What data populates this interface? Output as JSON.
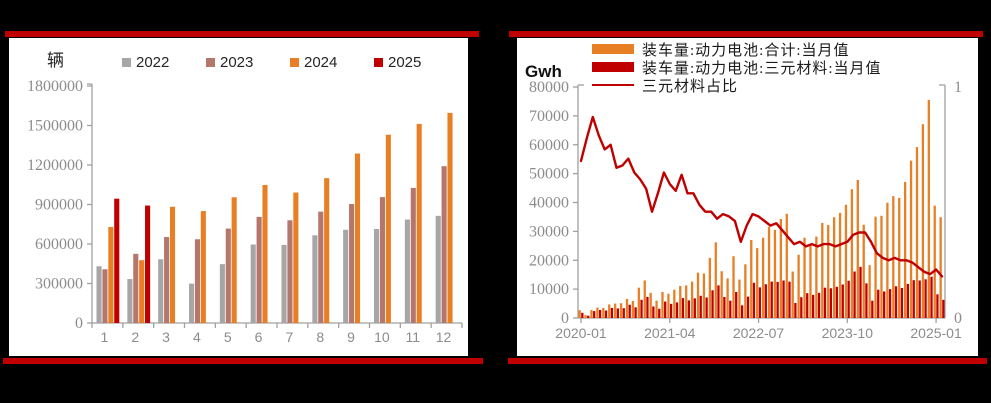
{
  "page": {
    "background_color": "#000000",
    "panel_color": "#FFFFFF",
    "accent_color": "#C00000",
    "axis_color": "#A0A0A0",
    "tick_label_color": "#8C8C8C"
  },
  "chart_data": [
    {
      "type": "bar",
      "unit": "辆",
      "categories": [
        "1",
        "2",
        "3",
        "4",
        "5",
        "6",
        "7",
        "8",
        "9",
        "10",
        "11",
        "12"
      ],
      "ylim": [
        0,
        1800000
      ],
      "yticks": [
        0,
        300000,
        600000,
        900000,
        1200000,
        1500000,
        1800000
      ],
      "legend_position": "top",
      "grid": false,
      "series": [
        {
          "name": "2022",
          "color": "#A6A6A6",
          "values": [
            431000,
            334000,
            484000,
            299000,
            447000,
            596000,
            593000,
            666000,
            708000,
            714000,
            786000,
            814000
          ]
        },
        {
          "name": "2023",
          "color": "#B5766B",
          "values": [
            408000,
            525000,
            653000,
            636000,
            717000,
            806000,
            780000,
            846000,
            904000,
            956000,
            1026000,
            1191000
          ]
        },
        {
          "name": "2024",
          "color": "#E87F24",
          "values": [
            729000,
            477000,
            883000,
            850000,
            955000,
            1048000,
            991000,
            1100000,
            1287000,
            1430000,
            1512000,
            1596000
          ]
        },
        {
          "name": "2025",
          "color": "#C00000",
          "values": [
            944000,
            892000
          ]
        }
      ]
    },
    {
      "type": "bar+line",
      "unit": "Gwh",
      "ylim_left": [
        0,
        80000
      ],
      "yticks_left": [
        0,
        10000,
        20000,
        30000,
        40000,
        50000,
        60000,
        70000,
        80000
      ],
      "ylim_right": [
        0,
        1
      ],
      "yticks_right": [
        0,
        1
      ],
      "x_ticks": [
        {
          "m": 0,
          "label": "2020-01"
        },
        {
          "m": 15,
          "label": "2021-04"
        },
        {
          "m": 30,
          "label": "2022-07"
        },
        {
          "m": 45,
          "label": "2023-10"
        },
        {
          "m": 60,
          "label": "2025-01"
        }
      ],
      "legend_position": "top",
      "grid": false,
      "series": [
        {
          "name": "装车量:动力电池:合计:当月值",
          "color": "#E87F24",
          "values": [
            2700,
            1000,
            2800,
            3600,
            3500,
            4700,
            5000,
            5100,
            6600,
            5900,
            10500,
            13000,
            8700,
            6000,
            9000,
            8400,
            9800,
            11100,
            11300,
            12600,
            15700,
            15400,
            20800,
            26200,
            16200,
            13700,
            21400,
            13300,
            18600,
            27000,
            24200,
            27800,
            31600,
            30500,
            34300,
            36100,
            16100,
            21900,
            27800,
            25100,
            28200,
            32900,
            32200,
            34900,
            36400,
            39200,
            44600,
            47800,
            32300,
            18300,
            35100,
            35400,
            39900,
            42200,
            41600,
            47100,
            54500,
            59200,
            67100,
            75500,
            38900,
            34900
          ]
        },
        {
          "name": "装车量:动力电池:三元材料:当月值",
          "color": "#C00000",
          "values": [
            1800,
            800,
            2400,
            2800,
            2600,
            3500,
            3300,
            3400,
            4600,
            3700,
            6300,
            7300,
            4000,
            3200,
            5700,
            4900,
            5400,
            6900,
            6100,
            6800,
            7700,
            7100,
            9600,
            11300,
            7300,
            6000,
            9000,
            4400,
            7400,
            12200,
            10600,
            11700,
            12600,
            12500,
            13000,
            12600,
            5200,
            7200,
            8600,
            8000,
            8700,
            10500,
            10300,
            10800,
            11600,
            12900,
            16100,
            17700,
            12000,
            6000,
            9800,
            9200,
            10000,
            11000,
            10400,
            11800,
            13100,
            13000,
            13400,
            14300,
            8200,
            6300
          ]
        }
      ],
      "line": {
        "name": "三元材料占比",
        "color": "#C00000",
        "axis": "right",
        "values": [
          0.68,
          0.78,
          0.87,
          0.79,
          0.73,
          0.75,
          0.65,
          0.66,
          0.69,
          0.63,
          0.6,
          0.56,
          0.46,
          0.54,
          0.63,
          0.58,
          0.55,
          0.62,
          0.54,
          0.54,
          0.49,
          0.46,
          0.46,
          0.43,
          0.45,
          0.44,
          0.42,
          0.33,
          0.4,
          0.45,
          0.44,
          0.42,
          0.4,
          0.41,
          0.38,
          0.35,
          0.32,
          0.33,
          0.31,
          0.32,
          0.31,
          0.32,
          0.32,
          0.31,
          0.32,
          0.33,
          0.36,
          0.37,
          0.37,
          0.33,
          0.28,
          0.26,
          0.25,
          0.26,
          0.25,
          0.25,
          0.24,
          0.22,
          0.2,
          0.19,
          0.21,
          0.18
        ]
      }
    }
  ]
}
